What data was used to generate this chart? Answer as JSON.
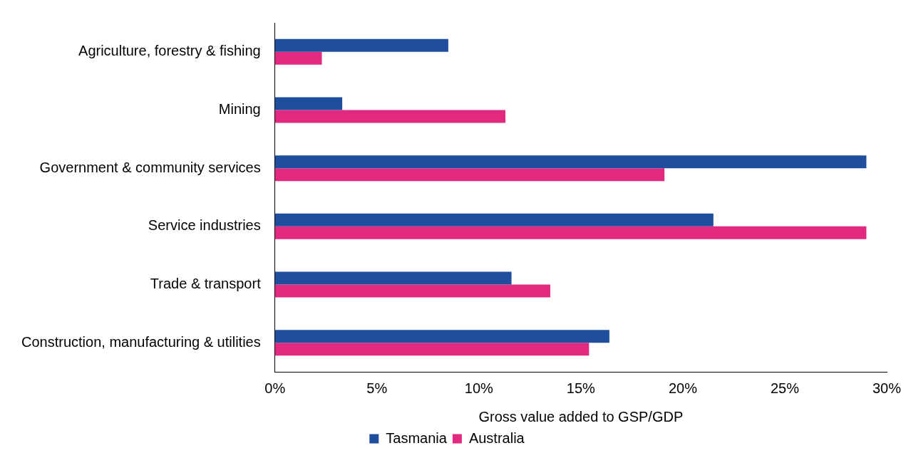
{
  "chart_data": {
    "type": "bar",
    "orientation": "horizontal",
    "xlabel": "Gross value added to GSP/GDP",
    "categories": [
      "Agriculture, forestry & fishing",
      "Mining",
      "Government & community services",
      "Service industries",
      "Trade & transport",
      "Construction, manufacturing & utilities"
    ],
    "series": [
      {
        "name": "Tasmania",
        "color": "#1f4e9e",
        "values": [
          8.5,
          3.3,
          29.0,
          21.5,
          11.6,
          16.4
        ]
      },
      {
        "name": "Australia",
        "color": "#e0297f",
        "values": [
          2.3,
          11.3,
          19.1,
          29.0,
          13.5,
          15.4
        ]
      }
    ],
    "xlim": [
      0,
      30
    ],
    "xticks": [
      {
        "value": 0,
        "label": "0%"
      },
      {
        "value": 5,
        "label": "5%"
      },
      {
        "value": 10,
        "label": "10%"
      },
      {
        "value": 15,
        "label": "15%"
      },
      {
        "value": 20,
        "label": "20%"
      },
      {
        "value": 25,
        "label": "25%"
      },
      {
        "value": 30,
        "label": "30%"
      }
    ],
    "grid": false,
    "legend": "bottom"
  }
}
